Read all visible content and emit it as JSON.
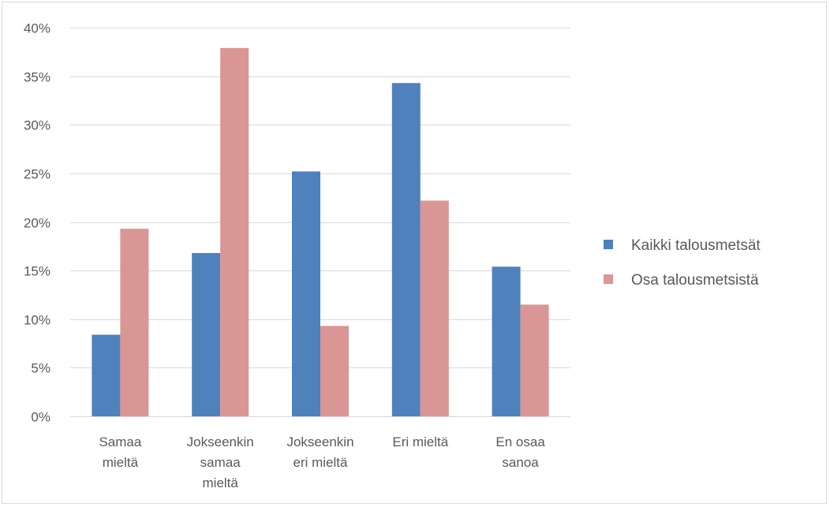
{
  "chart_data": {
    "type": "bar",
    "title": "",
    "xlabel": "",
    "ylabel": "",
    "categories": [
      [
        "Samaa",
        "mieltä"
      ],
      [
        "Jokseenkin",
        "samaa",
        "mieltä"
      ],
      [
        "Jokseenkin",
        "eri mieltä"
      ],
      [
        "Eri mieltä"
      ],
      [
        "En osaa",
        "sanoa"
      ]
    ],
    "series": [
      {
        "name": "Kaikki talousmetsät",
        "color": "#4f81bd",
        "values": [
          8.4,
          16.8,
          25.2,
          34.3,
          15.4
        ]
      },
      {
        "name": "Osa talousmetsistä",
        "color": "#d99694",
        "values": [
          19.3,
          37.9,
          9.3,
          22.2,
          11.5
        ]
      }
    ],
    "ylim": [
      0,
      40
    ],
    "yticks": [
      0,
      5,
      10,
      15,
      20,
      25,
      30,
      35,
      40
    ],
    "ytick_suffix": "%",
    "grid": true,
    "legend_position": "right"
  }
}
